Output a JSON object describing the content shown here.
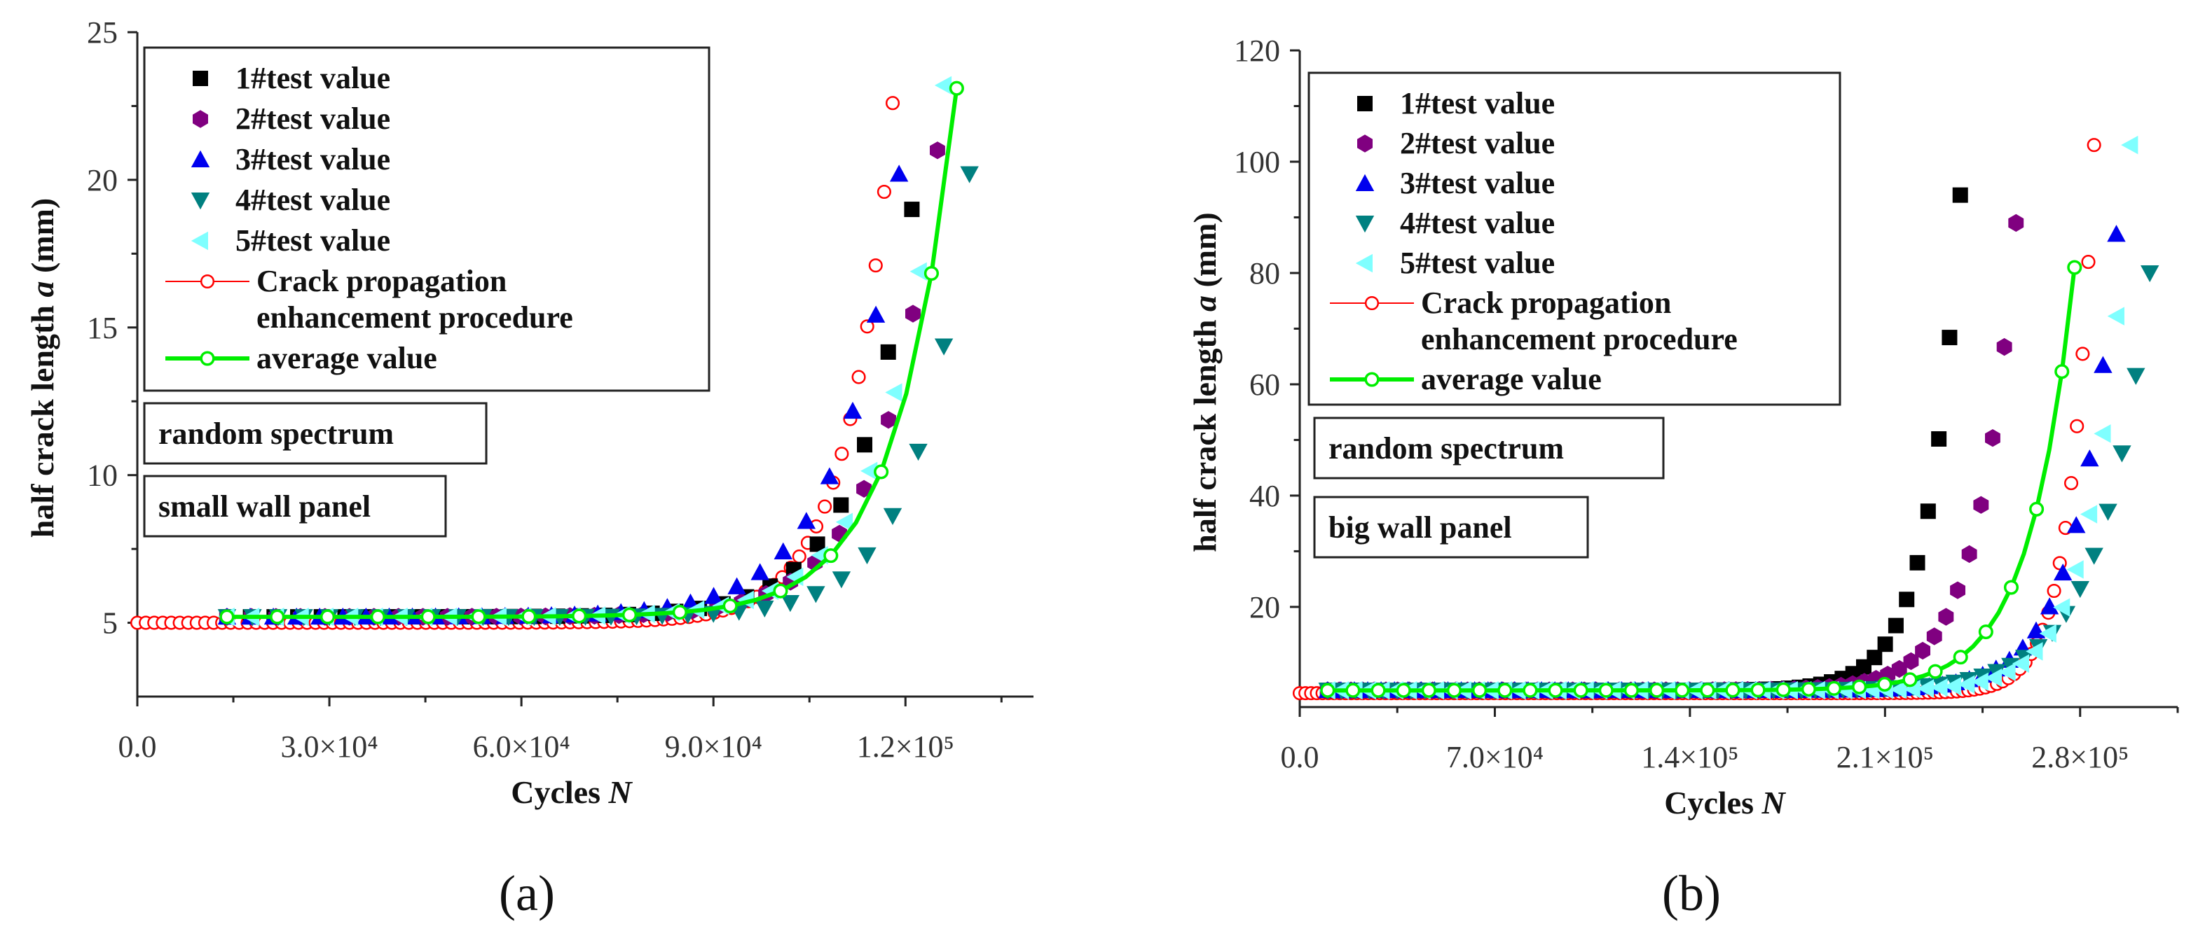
{
  "chart_data": [
    {
      "type": "scatter",
      "panel_label": "(a)",
      "xlabel_prefix": "Cycles ",
      "xlabel_var": "N",
      "ylabel_prefix": "half crack length ",
      "ylabel_var": "a",
      "ylabel_suffix": " (mm)",
      "xlim": [
        0,
        140000
      ],
      "ylim": [
        2.5,
        25
      ],
      "x_ticks": [
        {
          "v": 0,
          "label": "0.0"
        },
        {
          "v": 30000,
          "label": "3.0×10⁴"
        },
        {
          "v": 60000,
          "label": "6.0×10⁴"
        },
        {
          "v": 90000,
          "label": "9.0×10⁴"
        },
        {
          "v": 120000,
          "label": "1.2×10⁵"
        }
      ],
      "y_ticks": [
        {
          "v": 5,
          "label": "5"
        },
        {
          "v": 10,
          "label": "10"
        },
        {
          "v": 15,
          "label": "15"
        },
        {
          "v": 20,
          "label": "20"
        },
        {
          "v": 25,
          "label": "25"
        }
      ],
      "notes": [
        "random spectrum",
        "small wall panel"
      ],
      "legend": [
        {
          "label": "1#test value",
          "marker": "square",
          "color": "#000000"
        },
        {
          "label": "2#test value",
          "marker": "hexagon",
          "color": "#800080"
        },
        {
          "label": "3#test value",
          "marker": "triangle-up",
          "color": "#0000ee"
        },
        {
          "label": "4#test value",
          "marker": "triangle-down",
          "color": "#008080"
        },
        {
          "label": "5#test value",
          "marker": "triangle-left",
          "color": "#7fffff"
        },
        {
          "label": "Crack propagation",
          "label2": "enhancement procedure",
          "marker": "circle-open",
          "color": "#ff0000"
        },
        {
          "label": "average value",
          "marker": "line-circle",
          "color": "#00ee00"
        }
      ],
      "series": [
        {
          "name": "1#test value",
          "marker": "square",
          "color": "#000000",
          "x0": 14000,
          "y0": 5.2,
          "x1": 121000,
          "y1": 19.0,
          "curv": 0.08,
          "n": 30
        },
        {
          "name": "2#test value",
          "marker": "hexagon",
          "color": "#800080",
          "x0": 14000,
          "y0": 5.2,
          "x1": 125000,
          "y1": 21.0,
          "curv": 0.08,
          "n": 30
        },
        {
          "name": "3#test value",
          "marker": "triangle-up",
          "color": "#0000ee",
          "x0": 14000,
          "y0": 5.2,
          "x1": 119000,
          "y1": 20.2,
          "curv": 0.09,
          "n": 30
        },
        {
          "name": "4#test value",
          "marker": "triangle-down",
          "color": "#008080",
          "x0": 14000,
          "y0": 5.2,
          "x1": 130000,
          "y1": 20.2,
          "curv": 0.07,
          "n": 30
        },
        {
          "name": "5#test value",
          "marker": "triangle-left",
          "color": "#7fffff",
          "x0": 14000,
          "y0": 5.2,
          "x1": 126000,
          "y1": 23.2,
          "curv": 0.08,
          "n": 30
        }
      ],
      "enhancement": {
        "name": "Crack propagation enhancement procedure",
        "color": "#ff0000",
        "x0": 0,
        "y0": 5.0,
        "x1": 118000,
        "y1": 22.6,
        "curv": 0.06,
        "n": 90
      },
      "average": {
        "name": "average value",
        "color": "#00ee00",
        "x0": 14000,
        "y0": 5.2,
        "x1": 128000,
        "y1": 23.1,
        "curv": 0.08,
        "n": 30
      }
    },
    {
      "type": "scatter",
      "panel_label": "(b)",
      "xlabel_prefix": "Cycles ",
      "xlabel_var": "N",
      "ylabel_prefix": "half crack length ",
      "ylabel_var": "a",
      "ylabel_suffix": " (mm)",
      "xlim": [
        0,
        315000
      ],
      "ylim": [
        2,
        120
      ],
      "x_ticks": [
        {
          "v": 0,
          "label": "0.0"
        },
        {
          "v": 70000,
          "label": "7.0×10⁴"
        },
        {
          "v": 140000,
          "label": "1.4×10⁵"
        },
        {
          "v": 210000,
          "label": "2.1×10⁵"
        },
        {
          "v": 280000,
          "label": "2.8×10⁵"
        }
      ],
      "y_ticks": [
        {
          "v": 20,
          "label": "20"
        },
        {
          "v": 40,
          "label": "40"
        },
        {
          "v": 60,
          "label": "60"
        },
        {
          "v": 80,
          "label": "80"
        },
        {
          "v": 100,
          "label": "100"
        },
        {
          "v": 120,
          "label": "120"
        }
      ],
      "notes": [
        "random spectrum",
        "big wall panel"
      ],
      "legend": [
        {
          "label": "1#test value",
          "marker": "square",
          "color": "#000000"
        },
        {
          "label": "2#test value",
          "marker": "hexagon",
          "color": "#800080"
        },
        {
          "label": "3#test value",
          "marker": "triangle-up",
          "color": "#0000ee"
        },
        {
          "label": "4#test value",
          "marker": "triangle-down",
          "color": "#008080"
        },
        {
          "label": "5#test value",
          "marker": "triangle-left",
          "color": "#7fffff"
        },
        {
          "label": "Crack propagation",
          "label2": "enhancement procedure",
          "marker": "circle-open",
          "color": "#ff0000"
        },
        {
          "label": "average value",
          "marker": "line-circle",
          "color": "#00ee00"
        }
      ],
      "series": [
        {
          "name": "1#test value",
          "marker": "square",
          "color": "#000000",
          "x0": 10000,
          "y0": 5,
          "x1": 237000,
          "y1": 94,
          "curv": 0.05,
          "n": 60
        },
        {
          "name": "2#test value",
          "marker": "hexagon",
          "color": "#800080",
          "x0": 10000,
          "y0": 5,
          "x1": 257000,
          "y1": 89,
          "curv": 0.055,
          "n": 60
        },
        {
          "name": "3#test value",
          "marker": "triangle-up",
          "color": "#0000ee",
          "x0": 10000,
          "y0": 5,
          "x1": 293000,
          "y1": 87,
          "curv": 0.05,
          "n": 60
        },
        {
          "name": "4#test value",
          "marker": "triangle-down",
          "color": "#008080",
          "x0": 10000,
          "y0": 5,
          "x1": 305000,
          "y1": 80,
          "curv": 0.06,
          "n": 60
        },
        {
          "name": "5#test value",
          "marker": "triangle-left",
          "color": "#7fffff",
          "x0": 10000,
          "y0": 5,
          "x1": 298000,
          "y1": 103,
          "curv": 0.045,
          "n": 60
        }
      ],
      "enhancement": {
        "name": "Crack propagation enhancement procedure",
        "color": "#ff0000",
        "x0": 0,
        "y0": 4.5,
        "x1": 285000,
        "y1": 103,
        "curv": 0.03,
        "n": 140
      },
      "average": {
        "name": "average value",
        "color": "#00ee00",
        "x0": 10000,
        "y0": 5,
        "x1": 278000,
        "y1": 81,
        "curv": 0.06,
        "n": 60
      }
    }
  ]
}
